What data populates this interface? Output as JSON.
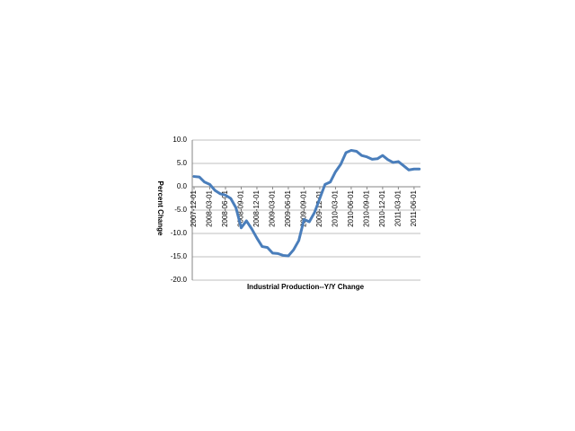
{
  "chart_data": {
    "type": "line",
    "x_label": "Industrial Production--Y/Y Change",
    "y_label": "Percent Change",
    "categories": [
      "2007-12-01",
      null,
      null,
      "2008-03-01",
      null,
      null,
      "2008-06-01",
      null,
      null,
      "2008-09-01",
      null,
      null,
      "2008-12-01",
      null,
      null,
      "2009-03-01",
      null,
      null,
      "2009-06-01",
      null,
      null,
      "2009-09-01",
      null,
      null,
      "2009-12-01",
      null,
      null,
      "2010-03-01",
      null,
      null,
      "2010-06-01",
      null,
      null,
      "2010-09-01",
      null,
      null,
      "2010-12-01",
      null,
      null,
      "2011-03-01",
      null,
      null,
      "2011-06-01",
      null
    ],
    "series": [
      {
        "name": "Industrial Production--Y/Y Change",
        "color": "#4a7ebb",
        "values": [
          2.2,
          2.1,
          1.0,
          0.5,
          -0.8,
          -1.5,
          -1.8,
          -2.5,
          -4.5,
          -8.8,
          -7.3,
          -9.0,
          -11.0,
          -12.8,
          -13.0,
          -14.2,
          -14.3,
          -14.7,
          -14.8,
          -13.5,
          -11.5,
          -7.0,
          -7.5,
          -5.5,
          -2.5,
          0.5,
          1.0,
          3.2,
          4.8,
          7.3,
          7.8,
          7.6,
          6.7,
          6.4,
          5.9,
          6.0,
          6.7,
          5.8,
          5.2,
          5.4,
          4.5,
          3.6,
          3.8,
          3.8
        ]
      }
    ],
    "ylim": [
      -20,
      10
    ],
    "yticks": [
      {
        "value": -20,
        "label": "-20.0"
      },
      {
        "value": -15,
        "label": "-15.0"
      },
      {
        "value": -10,
        "label": "-10.0"
      },
      {
        "value": -5,
        "label": "-5.0"
      },
      {
        "value": 0,
        "label": "0.0"
      },
      {
        "value": 5,
        "label": "5.0"
      },
      {
        "value": 10,
        "label": "10.0"
      }
    ],
    "grid": true
  }
}
